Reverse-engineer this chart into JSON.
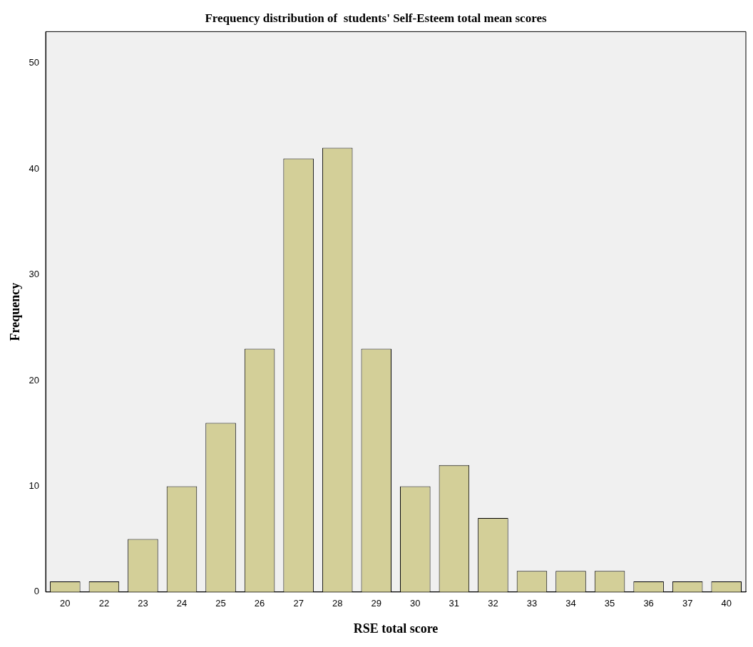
{
  "chart_data": {
    "type": "bar",
    "title": "Frequency distribution of  students' Self-Esteem total mean scores",
    "xlabel": "RSE total score",
    "ylabel": "Frequency",
    "categories": [
      "20",
      "22",
      "23",
      "24",
      "25",
      "26",
      "27",
      "28",
      "29",
      "30",
      "31",
      "32",
      "33",
      "34",
      "35",
      "36",
      "37",
      "40"
    ],
    "values": [
      1,
      1,
      5,
      10,
      16,
      23,
      41,
      42,
      23,
      10,
      12,
      7,
      2,
      2,
      2,
      1,
      1,
      1
    ],
    "color": "#d3cf98",
    "ylim": [
      0,
      53
    ],
    "yticks": [
      0,
      10,
      20,
      30,
      40,
      50
    ],
    "grid": false,
    "legend": false
  }
}
